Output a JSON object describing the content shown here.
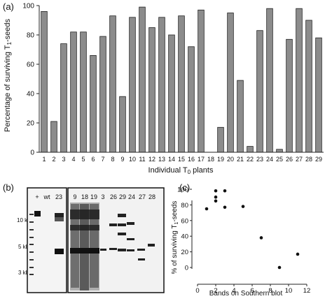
{
  "panels": {
    "a": "(a)",
    "b": "(b)",
    "c": "(c)"
  },
  "chart_data": [
    {
      "type": "bar",
      "panel": "(a)",
      "categories": [
        "1",
        "2",
        "3",
        "4",
        "5",
        "6",
        "7",
        "8",
        "9",
        "10",
        "11",
        "12",
        "13",
        "14",
        "15",
        "16",
        "17",
        "18",
        "19",
        "20",
        "21",
        "22",
        "23",
        "24",
        "25",
        "26",
        "27",
        "28",
        "29"
      ],
      "values": [
        96,
        21,
        74,
        82,
        82,
        66,
        79,
        93,
        38,
        92,
        99,
        85,
        92,
        80,
        93,
        72,
        97,
        0,
        17,
        95,
        49,
        4,
        83,
        98,
        2,
        77,
        98,
        90,
        78
      ],
      "ylim": [
        0,
        100
      ],
      "yticks": [
        0,
        20,
        40,
        60,
        80,
        100
      ],
      "ylabel": "Percentage of surviving T1-seeds",
      "xlabel": "Individual T0 plants",
      "bar_color": "#8c8c8c"
    },
    {
      "type": "scatter",
      "panel": "(c)",
      "points": [
        {
          "x": 1,
          "y": 75
        },
        {
          "x": 2,
          "y": 98
        },
        {
          "x": 2,
          "y": 90
        },
        {
          "x": 2,
          "y": 85
        },
        {
          "x": 3,
          "y": 98
        },
        {
          "x": 3,
          "y": 77
        },
        {
          "x": 5,
          "y": 78
        },
        {
          "x": 7,
          "y": 38
        },
        {
          "x": 9,
          "y": 0
        },
        {
          "x": 11,
          "y": 17
        }
      ],
      "xlim": [
        0,
        12
      ],
      "xticks": [
        0,
        2,
        4,
        6,
        8,
        10,
        12
      ],
      "ylim": [
        0,
        100
      ],
      "yticks": [
        0,
        20,
        40,
        60,
        80,
        100
      ],
      "xlabel": "Bands on Southern blot",
      "ylabel": "% of surviving T1-seeds"
    }
  ],
  "blot": {
    "size_markers": [
      "10 kb",
      "5 kb",
      "3 kb"
    ],
    "left_lanes": [
      "+",
      "wt",
      "23"
    ],
    "right_lanes": [
      "9",
      "18",
      "19",
      "3",
      "26",
      "29",
      "24",
      "27",
      "28"
    ]
  }
}
